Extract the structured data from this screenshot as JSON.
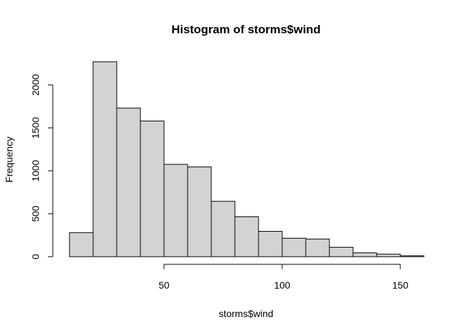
{
  "chart_data": {
    "type": "bar",
    "title": "Histogram of storms$wind",
    "xlabel": "storms$wind",
    "ylabel": "Frequency",
    "bin_edges": [
      10,
      20,
      30,
      40,
      50,
      60,
      70,
      80,
      90,
      100,
      110,
      120,
      130,
      140,
      150,
      160
    ],
    "values": [
      280,
      2270,
      1730,
      1580,
      1075,
      1045,
      645,
      465,
      295,
      215,
      205,
      110,
      45,
      30,
      10
    ],
    "xlim": [
      10,
      160
    ],
    "ylim": [
      0,
      2270
    ],
    "xticks": [
      50,
      100,
      150
    ],
    "yticks": [
      0,
      500,
      1000,
      1500,
      2000
    ],
    "grid": false,
    "bar_color": "#d3d3d3",
    "edge_color": "#000000"
  }
}
